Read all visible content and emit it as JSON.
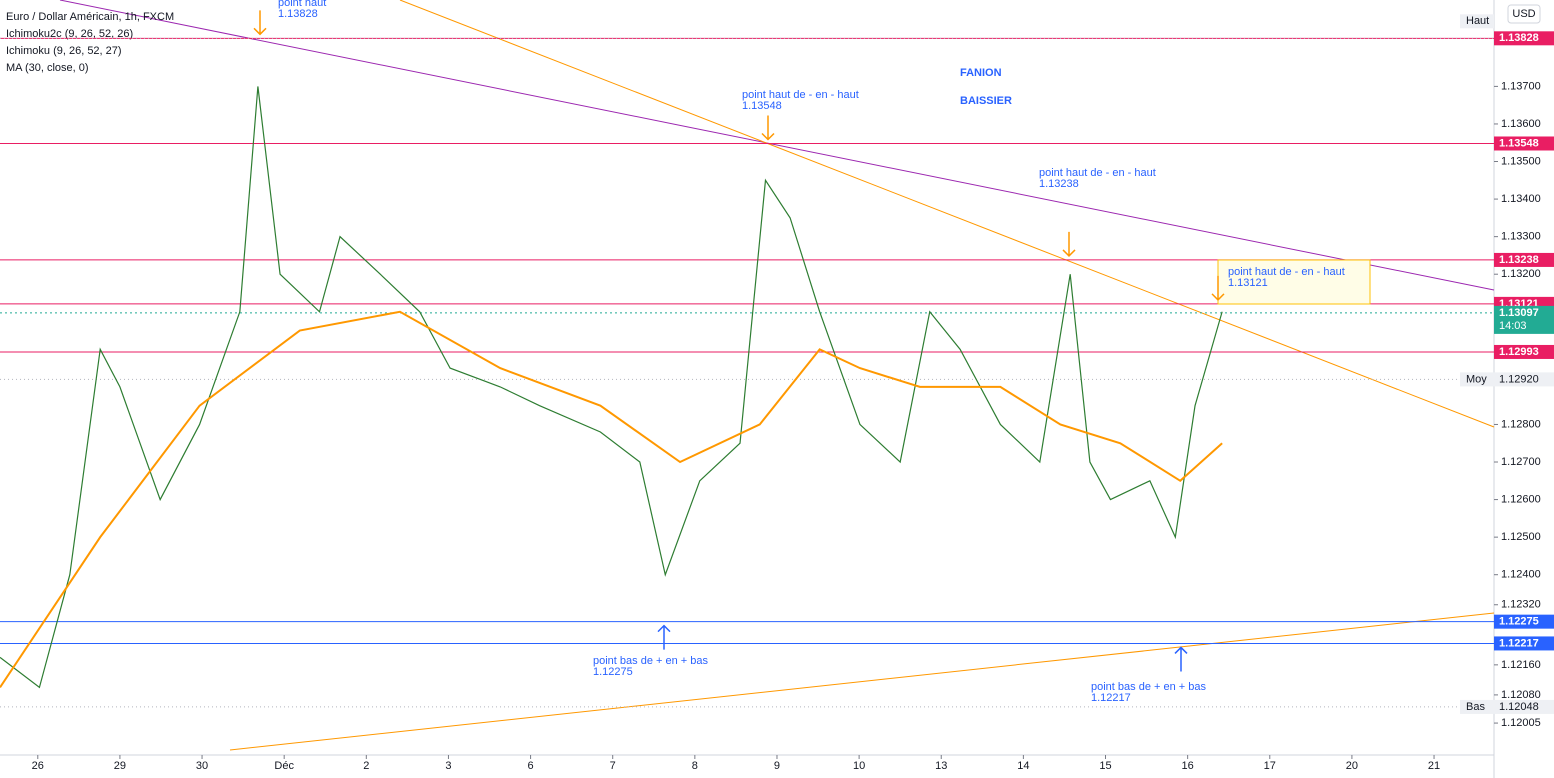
{
  "chart_data": {
    "type": "line",
    "title": "Euro / Dollar Américain, 1h, FXCM",
    "indicators": [
      "Ichimoku2c (9, 26, 52, 26)",
      "Ichimoku (9, 26, 52, 27)",
      "MA (30, close, 0)"
    ],
    "currency": "USD",
    "headline": [
      "FANION",
      "BAISSIER"
    ],
    "categories": [
      "26",
      "29",
      "30",
      "Déc",
      "2",
      "3",
      "6",
      "7",
      "8",
      "9",
      "10",
      "13",
      "14",
      "15",
      "16",
      "17",
      "20",
      "21"
    ],
    "xlim": [
      -0.46,
      17.73
    ],
    "ylim": [
      1.1192,
      1.1393
    ],
    "yticks": [
      {
        "value": 1.137,
        "label": "1.13700"
      },
      {
        "value": 1.136,
        "label": "1.13600"
      },
      {
        "value": 1.135,
        "label": "1.13500"
      },
      {
        "value": 1.134,
        "label": "1.13400"
      },
      {
        "value": 1.133,
        "label": "1.13300"
      },
      {
        "value": 1.132,
        "label": "1.13200"
      },
      {
        "value": 1.128,
        "label": "1.12800"
      },
      {
        "value": 1.127,
        "label": "1.12700"
      },
      {
        "value": 1.126,
        "label": "1.12600"
      },
      {
        "value": 1.125,
        "label": "1.12500"
      },
      {
        "value": 1.124,
        "label": "1.12400"
      },
      {
        "value": 1.1232,
        "label": "1.12320"
      },
      {
        "value": 1.1216,
        "label": "1.12160"
      },
      {
        "value": 1.1208,
        "label": "1.12080"
      },
      1.12005
    ],
    "series": [
      {
        "name": "Euro / Dollar Américain, 1h, FXCM",
        "color": "#2e7d32",
        "x": [
          -0.46,
          0.02,
          0.39,
          0.76,
          1.0,
          1.49,
          1.97,
          2.46,
          2.68,
          2.95,
          3.43,
          3.68,
          4.17,
          4.65,
          5.02,
          5.63,
          6.11,
          6.85,
          7.33,
          7.64,
          8.06,
          8.55,
          8.86,
          9.16,
          9.52,
          10.01,
          10.5,
          10.86,
          11.23,
          11.72,
          12.2,
          12.57,
          12.81,
          13.06,
          13.54,
          13.85,
          14.09,
          14.42
        ],
        "values": [
          1.1218,
          1.121,
          1.124,
          1.13,
          1.129,
          1.126,
          1.128,
          1.131,
          1.137,
          1.132,
          1.131,
          1.133,
          1.132,
          1.131,
          1.1295,
          1.129,
          1.1285,
          1.1278,
          1.127,
          1.124,
          1.1265,
          1.1275,
          1.1345,
          1.1335,
          1.131,
          1.128,
          1.127,
          1.131,
          1.13,
          1.128,
          1.127,
          1.132,
          1.127,
          1.126,
          1.1265,
          1.125,
          1.1285,
          1.131
        ]
      },
      {
        "name": "MA (30, close, 0)",
        "color": "#ff9800",
        "x": [
          -0.46,
          0.76,
          1.97,
          3.19,
          4.41,
          5.63,
          6.85,
          7.82,
          8.79,
          9.52,
          10.01,
          10.74,
          11.72,
          12.45,
          13.18,
          13.91,
          14.42
        ],
        "values": [
          1.121,
          1.125,
          1.1285,
          1.1305,
          1.131,
          1.1295,
          1.1285,
          1.127,
          1.128,
          1.13,
          1.1295,
          1.129,
          1.129,
          1.128,
          1.1275,
          1.1265,
          1.1275
        ]
      }
    ],
    "price_lines": [
      {
        "value": 1.13828,
        "label": "1.13828",
        "color": "#e91e63"
      },
      {
        "value": 1.13548,
        "label": "1.13548",
        "color": "#e91e63"
      },
      {
        "value": 1.13238,
        "label": "1.13238",
        "color": "#e91e63"
      },
      {
        "value": 1.13121,
        "label": "1.13121",
        "color": "#e91e63"
      },
      {
        "value": 1.13097,
        "label": "1.13097",
        "color": "#22ab94",
        "sub": "14:03"
      },
      {
        "value": 1.12993,
        "label": "1.12993",
        "color": "#e91e63"
      },
      {
        "value": 1.12275,
        "label": "1.12275",
        "color": "#2962ff"
      },
      {
        "value": 1.12217,
        "label": "1.12217",
        "color": "#2962ff"
      }
    ],
    "stats": [
      {
        "tag": "Haut",
        "value": 1.13828,
        "label": "1.13828"
      },
      {
        "tag": "Moy",
        "value": 1.1292,
        "label": "1.12920"
      },
      {
        "tag": "Bas",
        "value": 1.12048,
        "label": "1.12048"
      }
    ],
    "annotations": [
      {
        "text": "point haut",
        "value": 1.13828
      },
      {
        "text": "point haut de - en - haut",
        "value": 1.13548
      },
      {
        "text": "point haut de - en - haut",
        "value": 1.13238
      },
      {
        "text": "point haut de - en - haut",
        "value": 1.13121
      },
      {
        "text": "point bas de + en + bas",
        "value": 1.12275
      },
      {
        "text": "point bas de + en + bas",
        "value": 1.12217
      }
    ]
  }
}
